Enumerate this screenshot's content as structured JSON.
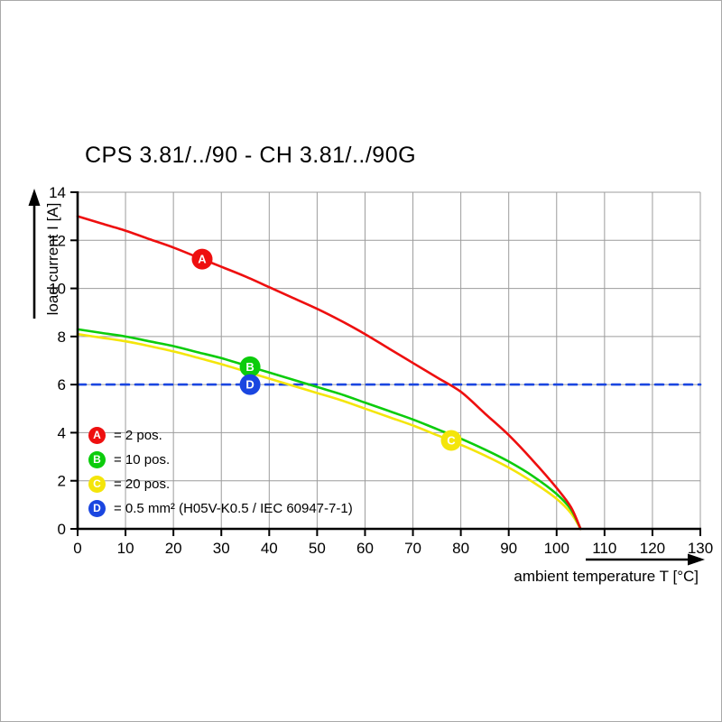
{
  "chart_data": {
    "type": "line",
    "title": "CPS 3.81/../90 - CH 3.81/../90G",
    "xlabel": "ambient temperature T [°C]",
    "ylabel": "load current I [A]",
    "xlim": [
      0,
      130
    ],
    "ylim": [
      0,
      14
    ],
    "x_ticks": [
      0,
      10,
      20,
      30,
      40,
      50,
      60,
      70,
      80,
      90,
      100,
      110,
      120,
      130
    ],
    "y_ticks": [
      0,
      2,
      4,
      6,
      8,
      10,
      12,
      14
    ],
    "grid": true,
    "legend_position": "lower-left-inside",
    "series": [
      {
        "id": "A",
        "legend_label": "= 2 pos.",
        "color": "#ee0f0f",
        "style": "solid",
        "marker": {
          "x": 26,
          "y": 11.22
        },
        "points": [
          [
            0,
            13.0
          ],
          [
            5,
            12.7
          ],
          [
            10,
            12.4
          ],
          [
            15,
            12.05
          ],
          [
            20,
            11.7
          ],
          [
            25,
            11.3
          ],
          [
            30,
            10.9
          ],
          [
            35,
            10.5
          ],
          [
            40,
            10.05
          ],
          [
            45,
            9.6
          ],
          [
            50,
            9.15
          ],
          [
            55,
            8.65
          ],
          [
            60,
            8.1
          ],
          [
            65,
            7.5
          ],
          [
            70,
            6.9
          ],
          [
            75,
            6.3
          ],
          [
            80,
            5.7
          ],
          [
            85,
            4.8
          ],
          [
            90,
            3.9
          ],
          [
            95,
            2.85
          ],
          [
            100,
            1.7
          ],
          [
            103,
            0.9
          ],
          [
            105,
            0
          ]
        ]
      },
      {
        "id": "B",
        "legend_label": "= 10 pos.",
        "color": "#0ccc0c",
        "style": "solid",
        "marker": {
          "x": 36,
          "y": 6.74
        },
        "points": [
          [
            0,
            8.3
          ],
          [
            5,
            8.15
          ],
          [
            10,
            8.0
          ],
          [
            15,
            7.8
          ],
          [
            20,
            7.6
          ],
          [
            25,
            7.35
          ],
          [
            30,
            7.1
          ],
          [
            35,
            6.8
          ],
          [
            40,
            6.5
          ],
          [
            45,
            6.2
          ],
          [
            50,
            5.9
          ],
          [
            55,
            5.6
          ],
          [
            60,
            5.25
          ],
          [
            65,
            4.9
          ],
          [
            70,
            4.55
          ],
          [
            75,
            4.15
          ],
          [
            80,
            3.75
          ],
          [
            85,
            3.3
          ],
          [
            90,
            2.8
          ],
          [
            95,
            2.2
          ],
          [
            100,
            1.45
          ],
          [
            103,
            0.8
          ],
          [
            105,
            0
          ]
        ]
      },
      {
        "id": "C",
        "legend_label": "= 20 pos.",
        "color": "#f4e50a",
        "style": "solid",
        "marker": {
          "x": 78,
          "y": 3.68
        },
        "points": [
          [
            0,
            8.1
          ],
          [
            5,
            7.95
          ],
          [
            10,
            7.8
          ],
          [
            15,
            7.6
          ],
          [
            20,
            7.38
          ],
          [
            25,
            7.12
          ],
          [
            30,
            6.85
          ],
          [
            35,
            6.55
          ],
          [
            40,
            6.25
          ],
          [
            45,
            5.95
          ],
          [
            50,
            5.65
          ],
          [
            55,
            5.35
          ],
          [
            60,
            5.0
          ],
          [
            65,
            4.65
          ],
          [
            70,
            4.3
          ],
          [
            75,
            3.9
          ],
          [
            80,
            3.5
          ],
          [
            85,
            3.05
          ],
          [
            90,
            2.55
          ],
          [
            95,
            1.95
          ],
          [
            100,
            1.25
          ],
          [
            103,
            0.65
          ],
          [
            105,
            0
          ]
        ]
      },
      {
        "id": "D",
        "legend_label": "= 0.5 mm² (H05V-K0.5 / IEC 60947-7-1)",
        "color": "#1a46e0",
        "style": "dashed",
        "marker": {
          "x": 36,
          "y": 6.0
        },
        "points": [
          [
            0,
            6
          ],
          [
            130,
            6
          ]
        ]
      }
    ]
  }
}
